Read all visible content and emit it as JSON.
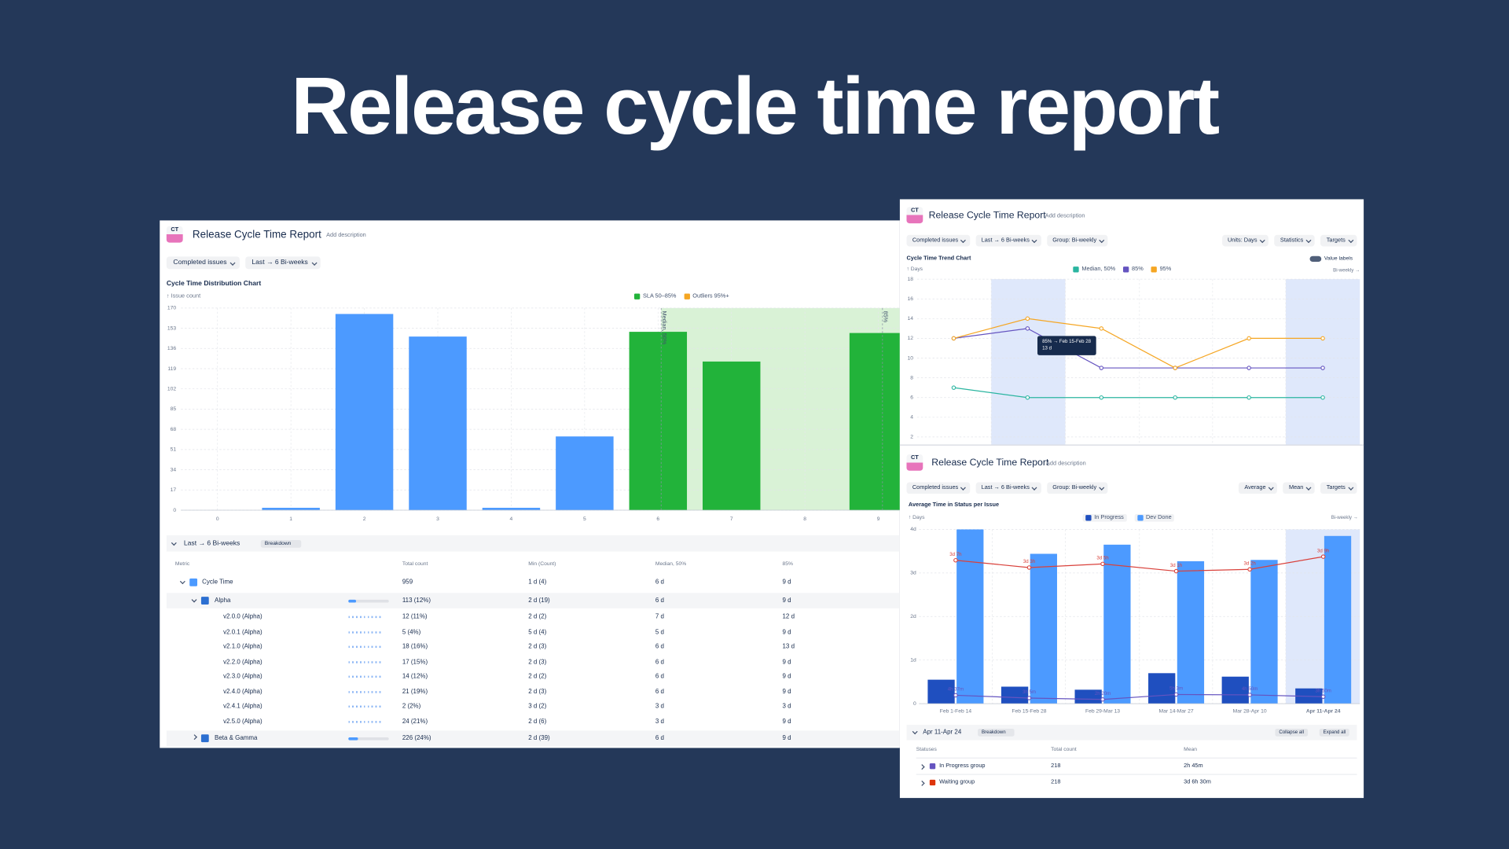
{
  "header": {
    "title": "Release cycle time report"
  },
  "panels": [
    {
      "logo": "CT",
      "title": "Release Cycle Time Report",
      "description": "Add description",
      "filters": [
        "Completed issues",
        "Last → 6 Bi-weeks"
      ]
    },
    {
      "logo": "CT",
      "title": "Release Cycle Time Report",
      "description": "Add description",
      "filters": [
        "Completed issues",
        "Last → 6 Bi-weeks",
        "Group: Bi-weekly"
      ],
      "filters_right": [
        "Units: Days",
        "Statistics",
        "Targets"
      ],
      "toggle": "Value labels"
    },
    {
      "logo": "CT",
      "title": "Release Cycle Time Report",
      "description": "Add description",
      "filters": [
        "Completed issues",
        "Last → 6 Bi-weeks",
        "Group: Bi-weekly"
      ],
      "filters_right": [
        "Average",
        "Mean",
        "Targets"
      ]
    }
  ],
  "chart_data": [
    {
      "type": "bar",
      "title": "Cycle Time Distribution Chart",
      "y_label": "↑ Issue count",
      "categories": [
        "0",
        "1",
        "2",
        "3",
        "4",
        "5",
        "6",
        "7",
        "8",
        "9"
      ],
      "values": [
        0,
        2,
        165,
        146,
        2,
        62,
        150,
        125,
        0,
        149
      ],
      "colors": [
        "#4c9aff",
        "#4c9aff",
        "#4c9aff",
        "#4c9aff",
        "#4c9aff",
        "#4c9aff",
        "#22b33a",
        "#22b33a",
        "#22b33a",
        "#22b33a"
      ],
      "ylim": [
        0,
        170
      ],
      "yticks": [
        0,
        17,
        34,
        51,
        68,
        85,
        102,
        119,
        136,
        153,
        170
      ],
      "grid": true,
      "legend": [
        {
          "name": "SLA 50–85%",
          "color": "#22b33a"
        },
        {
          "name": "Outliers 95%+",
          "color": "#f5a623"
        }
      ],
      "annotations": [
        "Median, 50%",
        "85%"
      ]
    },
    {
      "type": "line",
      "title": "Cycle Time Trend Chart",
      "y_label": "↑ Days",
      "x_label": "Bi-weekly →",
      "categories": [
        null,
        null,
        null,
        null,
        null,
        null
      ],
      "series": [
        {
          "name": "Median, 50%",
          "color": "#2ab5a0",
          "values": [
            7,
            6,
            6,
            6,
            6,
            6
          ]
        },
        {
          "name": "85%",
          "color": "#6554c0",
          "values": [
            12,
            13,
            9,
            9,
            9,
            9
          ]
        },
        {
          "name": "95%",
          "color": "#f5a623",
          "values": [
            12,
            14,
            13,
            9,
            12,
            12
          ]
        }
      ],
      "ylim": [
        2,
        18
      ],
      "yticks": [
        2,
        4,
        6,
        8,
        10,
        12,
        14,
        16,
        18
      ],
      "grid": true,
      "tooltip": {
        "title": "85% → Feb 15-Feb 28",
        "value": "13 d"
      }
    },
    {
      "type": "combo",
      "title": "Average Time in Status per Issue",
      "y_label": "↑ Days",
      "x_label": "Bi-weekly →",
      "categories": [
        "Feb 1-Feb 14",
        "Feb 15-Feb 28",
        "Feb 29-Mar 13",
        "Mar 14-Mar 27",
        "Mar 28-Apr 10",
        "Apr 11-Apr 24"
      ],
      "series": [
        {
          "name": "In Progress",
          "color": "#1f4fbf",
          "type": "bar",
          "values": [
            0.55,
            0.39,
            0.32,
            0.7,
            0.62,
            0.35
          ]
        },
        {
          "name": "Dev Done",
          "color": "#4c9aff",
          "type": "bar",
          "values": [
            4,
            3.44,
            3.65,
            3.27,
            3.3,
            3.85
          ]
        },
        {
          "color": "#d9413b",
          "type": "line",
          "values": [
            3.2917,
            3.125,
            3.2083,
            3.0417,
            3.0833,
            3.375
          ],
          "value_labels": [
            "3d 7h",
            "3d 3h",
            "3d 5h",
            "3d 1h",
            "3d 2h",
            "3d 9h"
          ]
        },
        {
          "color": "#6554c0",
          "type": "line",
          "values": [
            0.1924,
            0.1285,
            0.0972,
            0.2104,
            0.2014,
            0.1597
          ],
          "value_labels": [
            "4h 37m",
            "3h 5m",
            "2h 20m",
            "5h 3m",
            "4h 50m",
            "3h 50m"
          ]
        }
      ],
      "ylim": [
        0,
        4
      ],
      "yticks": [
        0,
        {
          "value": 1,
          "label": "1d"
        },
        {
          "value": 2,
          "label": "2d"
        },
        {
          "value": 3,
          "label": "3d"
        },
        {
          "value": 4,
          "label": "4d"
        }
      ],
      "grid": true
    }
  ],
  "tables": [
    {
      "section": "Last → 6 Bi-weeks",
      "breakdown": "Breakdown",
      "headers": [
        "Metric",
        "Total count",
        "Min (Count)",
        "Median, 50%",
        "85%"
      ],
      "rows": [
        [
          "Cycle Time",
          "959",
          "1 d (4)",
          "6 d",
          "9 d"
        ],
        [
          "Alpha",
          "113 (12%)",
          "2 d (19)",
          "6 d",
          "9 d"
        ],
        [
          "v2.0.0 (Alpha)",
          "12 (11%)",
          "2 d (2)",
          "7 d",
          "12 d"
        ],
        [
          "v2.0.1 (Alpha)",
          "5 (4%)",
          "5 d (4)",
          "5 d",
          "9 d"
        ],
        [
          "v2.1.0 (Alpha)",
          "18 (16%)",
          "2 d (3)",
          "6 d",
          "13 d"
        ],
        [
          "v2.2.0 (Alpha)",
          "17 (15%)",
          "2 d (3)",
          "6 d",
          "9 d"
        ],
        [
          "v2.3.0 (Alpha)",
          "14 (12%)",
          "2 d (2)",
          "6 d",
          "9 d"
        ],
        [
          "v2.4.0 (Alpha)",
          "21 (19%)",
          "2 d (3)",
          "6 d",
          "9 d"
        ],
        [
          "v2.4.1 (Alpha)",
          "2 (2%)",
          "3 d (2)",
          "3 d",
          "3 d"
        ],
        [
          "v2.5.0 (Alpha)",
          "24 (21%)",
          "2 d (6)",
          "3 d",
          "9 d"
        ],
        [
          "Beta & Gamma",
          "226 (24%)",
          "2 d (39)",
          "6 d",
          "9 d"
        ]
      ]
    },
    {
      "section": "Apr 11-Apr 24",
      "breakdown": "Breakdown",
      "actions": [
        "Collapse all",
        "Expand all"
      ],
      "headers": [
        "Statuses",
        "Total count",
        "Mean"
      ],
      "rows": [
        [
          "In Progress group",
          "218",
          "2h 45m"
        ],
        [
          "Waiting group",
          "218",
          "3d 6h 30m"
        ]
      ]
    }
  ]
}
